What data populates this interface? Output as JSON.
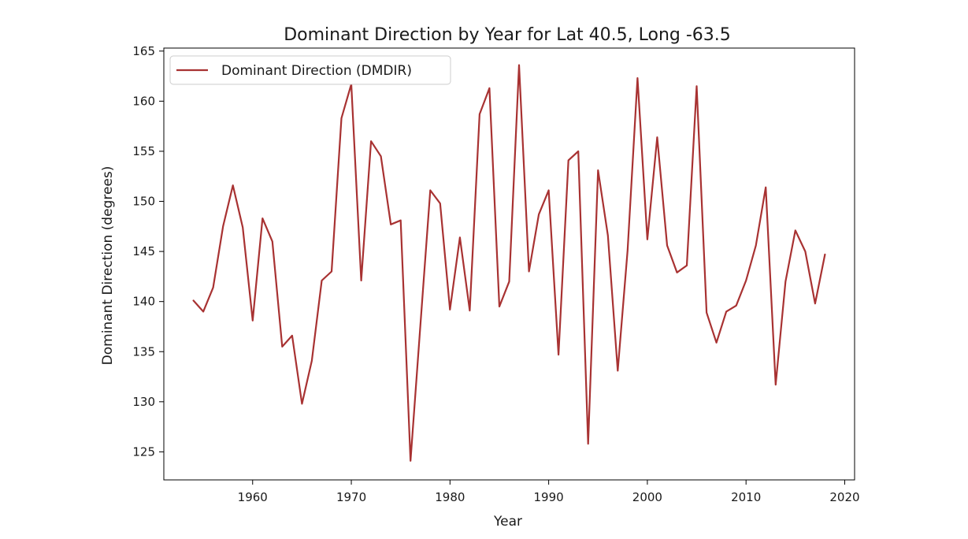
{
  "chart_data": {
    "type": "line",
    "title": "Dominant Direction by Year for Lat 40.5, Long -63.5",
    "xlabel": "Year",
    "ylabel": "Dominant Direction (degrees)",
    "xlim": [
      1951,
      2021
    ],
    "ylim": [
      122.2,
      165.3
    ],
    "xticks": [
      1960,
      1970,
      1980,
      1990,
      2000,
      2010,
      2020
    ],
    "yticks": [
      125,
      130,
      135,
      140,
      145,
      150,
      155,
      160,
      165
    ],
    "grid": false,
    "legend_position": "top-left",
    "series": [
      {
        "name": "Dominant Direction (DMDIR)",
        "color": "#a83232",
        "x": [
          1954,
          1955,
          1956,
          1957,
          1958,
          1959,
          1960,
          1961,
          1962,
          1963,
          1964,
          1965,
          1966,
          1967,
          1968,
          1969,
          1970,
          1971,
          1972,
          1973,
          1974,
          1975,
          1976,
          1977,
          1978,
          1979,
          1980,
          1981,
          1982,
          1983,
          1984,
          1985,
          1986,
          1987,
          1988,
          1989,
          1990,
          1991,
          1992,
          1993,
          1994,
          1995,
          1996,
          1997,
          1998,
          1999,
          2000,
          2001,
          2002,
          2003,
          2004,
          2005,
          2006,
          2007,
          2008,
          2009,
          2010,
          2011,
          2012,
          2013,
          2014,
          2015,
          2016,
          2017,
          2018
        ],
        "values": [
          140.1,
          139.0,
          141.4,
          147.5,
          151.6,
          147.4,
          138.1,
          148.3,
          146.0,
          135.5,
          136.6,
          129.8,
          134.1,
          142.1,
          143.0,
          158.3,
          161.7,
          142.1,
          156.0,
          154.5,
          147.7,
          148.1,
          124.1,
          137.6,
          151.1,
          149.8,
          139.2,
          146.4,
          139.1,
          158.7,
          161.3,
          139.5,
          142.0,
          163.6,
          143.0,
          148.7,
          151.1,
          134.7,
          154.1,
          155.0,
          125.8,
          153.1,
          146.6,
          133.1,
          145.1,
          162.3,
          146.2,
          156.4,
          145.6,
          142.9,
          143.6,
          161.5,
          138.9,
          135.9,
          139.0,
          139.6,
          142.1,
          145.6,
          151.4,
          131.7,
          142.0,
          147.1,
          145.0,
          139.8,
          144.7
        ]
      }
    ]
  }
}
